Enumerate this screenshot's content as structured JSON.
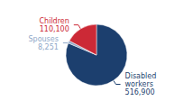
{
  "chart_data": {
    "type": "pie",
    "categories": [
      "Disabled\nworkers",
      "Spouses",
      "Children"
    ],
    "values": [
      516900,
      8251,
      110100
    ],
    "value_labels": [
      "516,900",
      "8,251",
      "110,100"
    ],
    "colors": [
      "#1c3f6e",
      "#8fa8c8",
      "#cc2936"
    ],
    "data_labels": true
  }
}
